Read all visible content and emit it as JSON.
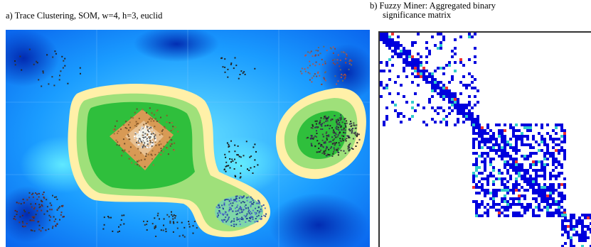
{
  "figure": {
    "panel_a": {
      "caption": "a) Trace Clustering, SOM, w=4, h=3, euclid",
      "grid": {
        "columns": 4,
        "rows": 3
      }
    },
    "panel_b": {
      "caption_line1": "b) Fuzzy Miner: Aggregated binary",
      "caption_line2": "significance matrix"
    }
  },
  "colors": {
    "background_blue": "#1a8cff",
    "deep_blue": "#0033cc",
    "cyan": "#33ccff",
    "yellow": "#ffeb99",
    "green": "#33cc33",
    "orange": "#cc8844",
    "matrix_blue": "#0000dd",
    "matrix_cyan": "#33cccc"
  }
}
